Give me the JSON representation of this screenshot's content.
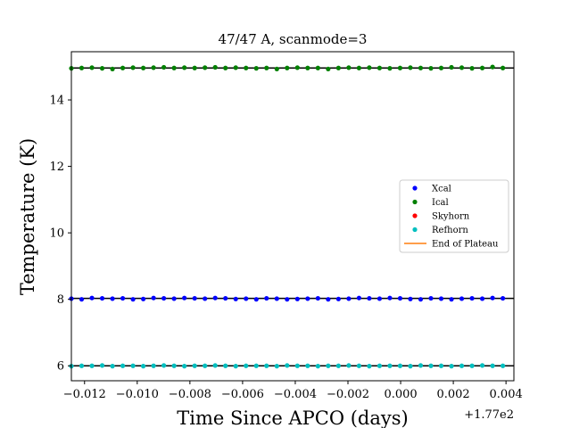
{
  "chart_data": {
    "type": "scatter",
    "title": "47/47 A, scanmode=3",
    "xlabel": "Time Since APCO (days)",
    "ylabel": "Temperature (K)",
    "x_offset_label": "+1.77e2",
    "xlim": [
      -0.0125,
      0.0043
    ],
    "ylim": [
      5.55,
      15.45
    ],
    "x_ticks": [
      -0.012,
      -0.01,
      -0.008,
      -0.006,
      -0.004,
      -0.002,
      0.0,
      0.002,
      0.004
    ],
    "x_tick_labels": [
      "−0.012",
      "−0.010",
      "−0.008",
      "−0.006",
      "−0.004",
      "−0.002",
      "0.000",
      "0.002",
      "0.004"
    ],
    "y_ticks": [
      6,
      8,
      10,
      12,
      14
    ],
    "y_tick_labels": [
      "6",
      "8",
      "10",
      "12",
      "14"
    ],
    "grid": false,
    "legend_position": "right",
    "x_start": -0.0125,
    "x_step": 0.00039,
    "series": [
      {
        "name": "Xcal",
        "color": "#0000ff",
        "marker": "dot",
        "fit_value": 8.03,
        "values": [
          8.02,
          8.0,
          8.04,
          8.03,
          8.02,
          8.03,
          8.0,
          8.01,
          8.04,
          8.03,
          8.02,
          8.04,
          8.03,
          8.02,
          8.04,
          8.03,
          8.01,
          8.02,
          8.0,
          8.03,
          8.02,
          8.0,
          8.01,
          8.02,
          8.03,
          8.0,
          8.01,
          8.02,
          8.04,
          8.03,
          8.02,
          8.04,
          8.03,
          8.01,
          8.0,
          8.03,
          8.02,
          8.0,
          8.02,
          8.03,
          8.02,
          8.04,
          8.03
        ]
      },
      {
        "name": "Ical",
        "color": "#008000",
        "marker": "dot",
        "fit_value": 14.96,
        "values": [
          14.95,
          14.96,
          14.97,
          14.95,
          14.93,
          14.96,
          14.97,
          14.96,
          14.97,
          14.98,
          14.96,
          14.97,
          14.96,
          14.97,
          14.98,
          14.96,
          14.97,
          14.96,
          14.95,
          14.96,
          14.93,
          14.96,
          14.97,
          14.96,
          14.96,
          14.93,
          14.96,
          14.97,
          14.96,
          14.97,
          14.96,
          14.95,
          14.96,
          14.97,
          14.96,
          14.95,
          14.96,
          14.98,
          14.97,
          14.95,
          14.96,
          14.99,
          14.96
        ]
      },
      {
        "name": "Skyhorn",
        "color": "#ff0000",
        "marker": "dot",
        "values": []
      },
      {
        "name": "Refhorn",
        "color": "#00bfbf",
        "marker": "dot",
        "fit_value": 6.0,
        "values": [
          5.99,
          6.0,
          6.0,
          6.01,
          5.99,
          6.0,
          6.0,
          5.99,
          6.0,
          6.01,
          6.0,
          5.99,
          6.0,
          6.0,
          6.01,
          6.0,
          5.99,
          6.0,
          6.0,
          6.0,
          5.99,
          6.01,
          6.0,
          6.0,
          5.99,
          6.0,
          6.0,
          6.01,
          6.0,
          5.99,
          6.0,
          6.0,
          6.0,
          5.99,
          6.01,
          6.0,
          6.0,
          5.99,
          6.0,
          6.0,
          6.01,
          6.0,
          6.0
        ]
      },
      {
        "name": "End of Plateau",
        "color": "#ff7f0e",
        "marker": "line",
        "values": []
      }
    ]
  }
}
